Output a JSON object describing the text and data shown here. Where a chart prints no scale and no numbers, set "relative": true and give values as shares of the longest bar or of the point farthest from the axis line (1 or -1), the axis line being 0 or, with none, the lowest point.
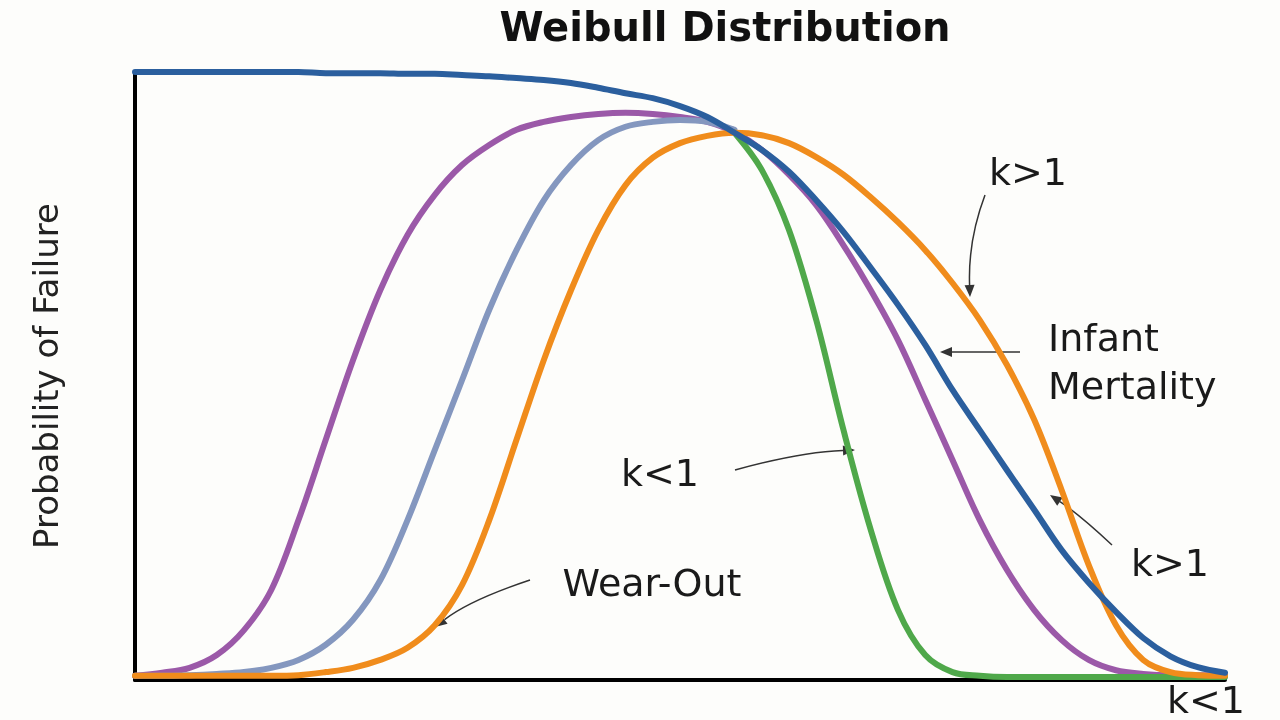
{
  "chart_data": {
    "type": "line",
    "title": "Weibull Distribution",
    "ylabel": "Probability of Failure",
    "relative": true,
    "grid": false,
    "marker": "none",
    "line_style": "solid",
    "categories": [
      null,
      null,
      null,
      null,
      null,
      null,
      null,
      null,
      null,
      null,
      null,
      null,
      null,
      null,
      null,
      null,
      null,
      null,
      null,
      null,
      null,
      null,
      null,
      null,
      null,
      null,
      null,
      null,
      null,
      null,
      null,
      null,
      null,
      null,
      null,
      null,
      null,
      null,
      null,
      null,
      null
    ],
    "series": [
      {
        "color": "#9b59a8",
        "values": [
          0.007,
          0.012,
          0.02,
          0.041,
          0.082,
          0.148,
          0.263,
          0.395,
          0.526,
          0.641,
          0.732,
          0.798,
          0.847,
          0.88,
          0.905,
          0.918,
          0.926,
          0.931,
          0.933,
          0.931,
          0.926,
          0.918,
          0.901,
          0.872,
          0.831,
          0.781,
          0.715,
          0.641,
          0.559,
          0.461,
          0.362,
          0.263,
          0.181,
          0.115,
          0.066,
          0.033,
          0.016,
          0.01,
          0.008,
          0.008,
          0.008
        ]
      },
      {
        "color": "#8497bf",
        "values": [
          0.007,
          0.007,
          0.008,
          0.01,
          0.013,
          0.02,
          0.033,
          0.058,
          0.099,
          0.164,
          0.263,
          0.378,
          0.493,
          0.609,
          0.707,
          0.789,
          0.847,
          0.888,
          0.91,
          0.918,
          0.921,
          0.918,
          0.905,
          null,
          null,
          null,
          null,
          null,
          null,
          null,
          null,
          null,
          null,
          null,
          null,
          null,
          null,
          null,
          null,
          null,
          null
        ]
      },
      {
        "color": "#4fa84a",
        "values": [
          null,
          null,
          null,
          null,
          null,
          null,
          null,
          null,
          null,
          null,
          null,
          null,
          null,
          null,
          null,
          null,
          null,
          null,
          null,
          null,
          null,
          null,
          0.9,
          0.839,
          0.74,
          0.592,
          0.411,
          0.247,
          0.115,
          0.041,
          0.013,
          0.007,
          0.005,
          0.005,
          0.005,
          0.005,
          0.005,
          0.005,
          0.005,
          0.005,
          0.005
        ]
      },
      {
        "color": "#f08c1c",
        "values": [
          0.007,
          0.007,
          0.007,
          0.007,
          0.007,
          0.007,
          0.008,
          0.013,
          0.02,
          0.033,
          0.053,
          0.09,
          0.156,
          0.263,
          0.395,
          0.526,
          0.641,
          0.74,
          0.814,
          0.859,
          0.883,
          0.895,
          0.9,
          0.896,
          0.883,
          0.86,
          0.831,
          0.794,
          0.753,
          0.707,
          0.653,
          0.592,
          0.518,
          0.428,
          0.313,
          0.189,
          0.09,
          0.033,
          0.013,
          0.008,
          0.007
        ]
      },
      {
        "color": "#2b5f9e",
        "values": [
          1.0,
          1.0,
          1.0,
          1.0,
          1.0,
          1.0,
          1.0,
          0.998,
          0.998,
          0.998,
          0.997,
          0.997,
          0.995,
          0.993,
          0.99,
          0.987,
          0.982,
          0.974,
          0.965,
          0.957,
          0.944,
          0.926,
          0.9,
          0.872,
          0.836,
          0.789,
          0.737,
          0.678,
          0.617,
          0.551,
          0.477,
          0.411,
          0.345,
          0.28,
          0.214,
          0.16,
          0.112,
          0.069,
          0.039,
          0.021,
          0.012
        ]
      }
    ],
    "annotations": [
      "k>1",
      "Infant\nMertality",
      "k<1",
      "k>1",
      "Wear-Out",
      "k<1"
    ]
  }
}
